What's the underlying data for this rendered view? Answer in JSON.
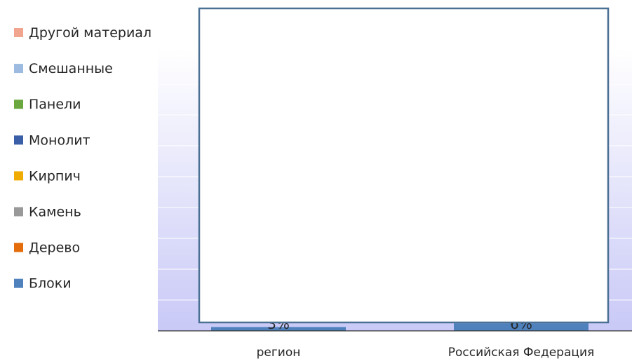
{
  "chart_data": {
    "type": "bar",
    "stacked": true,
    "categories": [
      "регион",
      "Российская Федерация"
    ],
    "series": [
      {
        "name": "Блоки",
        "color": "#4f81bd",
        "values": [
          3,
          6
        ],
        "labels": [
          "3%",
          "6%"
        ]
      },
      {
        "name": "Дерево",
        "color": "#e46c0a",
        "values": [
          null,
          null
        ]
      },
      {
        "name": "Камень",
        "color": "#999999",
        "values": [
          null,
          null
        ]
      },
      {
        "name": "Кирпич",
        "color": "#f0ab00",
        "values": [
          null,
          null
        ]
      },
      {
        "name": "Монолит",
        "color": "#3a5ea8",
        "values": [
          null,
          null
        ]
      },
      {
        "name": "Панели",
        "color": "#6aa73f",
        "values": [
          null,
          null
        ]
      },
      {
        "name": "Смешанные",
        "color": "#9dbbe0",
        "values": [
          null,
          null
        ]
      },
      {
        "name": "Другой материал",
        "color": "#f2a58e",
        "values": [
          null,
          null
        ]
      }
    ],
    "legend": {
      "position": "left",
      "order": "reversed"
    },
    "grid": true,
    "overlay": {
      "type": "blank-box",
      "border_color": "#4a7094",
      "fill": "#ffffff"
    }
  },
  "colors": {
    "plot_gradient_top": "#ffffff",
    "plot_gradient_bottom": "#c9c9f7",
    "gridline": "#ffffff",
    "axis": "#333333"
  }
}
